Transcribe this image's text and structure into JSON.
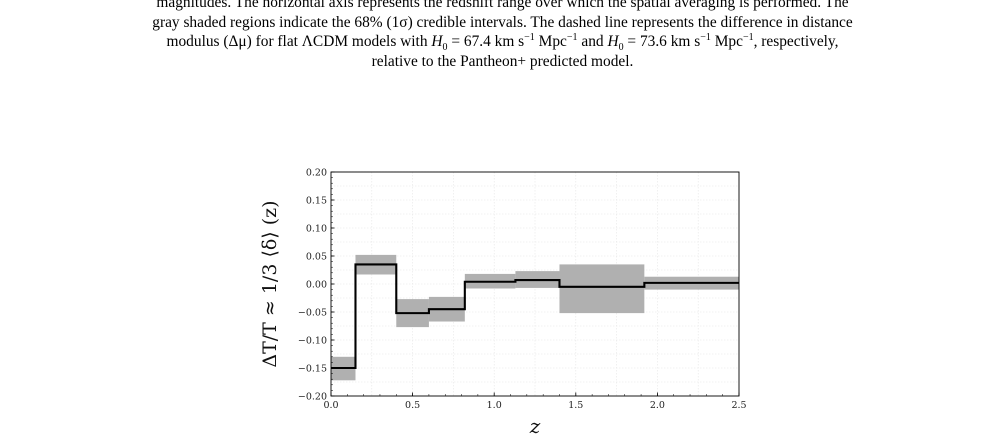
{
  "caption": {
    "lines": [
      "magnitudes. The horizontal axis represents the redshift range over which the spatial averaging is performed. The",
      "gray shaded regions indicate the 68% (1σ) credible intervals. The dashed line represents the difference in distance",
      "modulus (Δμ) for flat ΛCDM models with H0 = 67.4 km s−1 Mpc−1 and H0 = 73.6 km s−1 Mpc−1, respectively,",
      "relative to the Pantheon+ predicted model."
    ],
    "line3": {
      "a": "modulus (Δμ) for flat ΛCDM models with ",
      "h": "H",
      "sub0": "0",
      "v1": " = 67.4 km s",
      "sup_m1": "−1",
      "mpc": " Mpc",
      "mid": " and ",
      "v2": " = 73.6 km s",
      "end": ", respectively,"
    }
  },
  "chart_data": {
    "type": "line",
    "step": true,
    "xlabel": "z",
    "ylabel": "ΔT/T ≈ 1/3 ⟨δ⟩ (z)",
    "xlim": [
      0.0,
      2.5
    ],
    "ylim": [
      -0.2,
      0.2
    ],
    "xticks": [
      "0.0",
      "0.5",
      "1.0",
      "1.5",
      "2.0",
      "2.5"
    ],
    "yticks": [
      "0.20",
      "0.15",
      "0.10",
      "0.05",
      "0.00",
      "−0.05",
      "−0.10",
      "−0.15",
      "−0.20"
    ],
    "grid": true,
    "bins": [
      {
        "x0": 0.0,
        "x1": 0.15,
        "y": -0.15,
        "lo": -0.172,
        "hi": -0.13
      },
      {
        "x0": 0.15,
        "x1": 0.4,
        "y": 0.035,
        "lo": 0.017,
        "hi": 0.052
      },
      {
        "x0": 0.4,
        "x1": 0.6,
        "y": -0.052,
        "lo": -0.077,
        "hi": -0.027
      },
      {
        "x0": 0.6,
        "x1": 0.82,
        "y": -0.045,
        "lo": -0.067,
        "hi": -0.023
      },
      {
        "x0": 0.82,
        "x1": 1.13,
        "y": 0.004,
        "lo": -0.008,
        "hi": 0.018
      },
      {
        "x0": 1.13,
        "x1": 1.4,
        "y": 0.007,
        "lo": -0.007,
        "hi": 0.023
      },
      {
        "x0": 1.4,
        "x1": 1.92,
        "y": -0.005,
        "lo": -0.052,
        "hi": 0.035
      },
      {
        "x0": 1.92,
        "x1": 2.5,
        "y": 0.002,
        "lo": -0.01,
        "hi": 0.013
      }
    ],
    "colors": {
      "band": "#b0b0b0",
      "line": "#000000",
      "grid": "#e6e6e6"
    }
  }
}
